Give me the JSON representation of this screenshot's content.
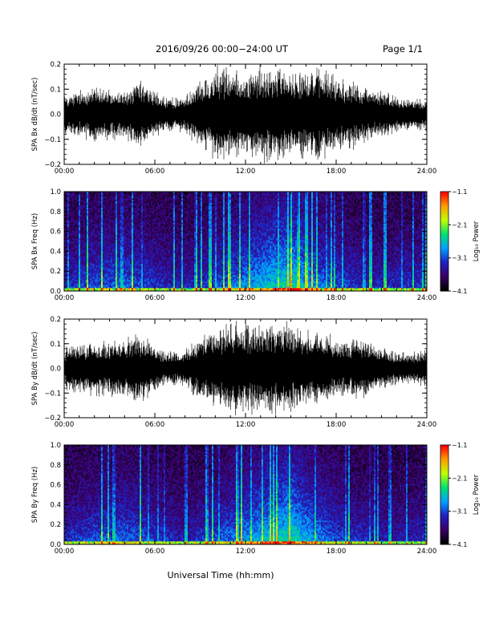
{
  "header": {
    "title": "2016/09/26  00:00−24:00 UT",
    "page": "Page 1/1"
  },
  "xlabel": "Universal Time (hh:mm)",
  "x_ticks": [
    "00:00",
    "06:00",
    "12:00",
    "18:00",
    "24:00"
  ],
  "colors": {
    "waveform": "#000000",
    "colorscale": [
      "#000000",
      "#3a0066",
      "#2020c0",
      "#00a0ff",
      "#00e070",
      "#c0ff00",
      "#ffa000",
      "#ff0000"
    ]
  },
  "chart_data": [
    {
      "type": "line",
      "panel": "bx-waveform",
      "ylabel": "SPA Bx dB/dt (nT/sec)",
      "xlim": [
        0,
        24
      ],
      "ylim": [
        -0.2,
        0.2
      ],
      "y_ticks": [
        "−0.2",
        "−0.1",
        "0.0",
        "0.1",
        "0.2"
      ],
      "x_hours": [
        0,
        1,
        2,
        3,
        4,
        5,
        6,
        7,
        8,
        9,
        10,
        11,
        12,
        13,
        14,
        15,
        16,
        17,
        18,
        19,
        20,
        21,
        22,
        23,
        24
      ],
      "envelope_amplitude": [
        0.09,
        0.1,
        0.13,
        0.11,
        0.1,
        0.14,
        0.1,
        0.07,
        0.08,
        0.16,
        0.2,
        0.2,
        0.18,
        0.2,
        0.2,
        0.2,
        0.2,
        0.2,
        0.16,
        0.15,
        0.12,
        0.1,
        0.08,
        0.07,
        0.08
      ]
    },
    {
      "type": "heatmap",
      "panel": "bx-spectrogram",
      "ylabel": "SPA Bx Freq (Hz)",
      "xlim": [
        0,
        24
      ],
      "ylim": [
        0.0,
        1.0
      ],
      "y_ticks": [
        "0.0",
        "0.2",
        "0.4",
        "0.6",
        "0.8",
        "1.0"
      ],
      "colorbar_label": "Log₁₀ Power",
      "colorbar_ticks": [
        "−1.1",
        "−2.1",
        "−3.1",
        "−4.1"
      ],
      "clim": [
        -4.1,
        -1.1
      ],
      "x_hours": [
        0,
        2,
        4,
        6,
        8,
        10,
        12,
        14,
        15,
        16,
        18,
        20,
        22,
        24
      ],
      "activity": [
        0.35,
        0.45,
        0.5,
        0.4,
        0.3,
        0.45,
        0.6,
        0.75,
        0.8,
        0.65,
        0.45,
        0.35,
        0.35,
        0.4
      ]
    },
    {
      "type": "line",
      "panel": "by-waveform",
      "ylabel": "SPA By dB/dt (nT/sec)",
      "xlim": [
        0,
        24
      ],
      "ylim": [
        -0.2,
        0.2
      ],
      "y_ticks": [
        "−0.2",
        "−0.1",
        "0.0",
        "0.1",
        "0.2"
      ],
      "x_hours": [
        0,
        1,
        2,
        3,
        4,
        5,
        6,
        7,
        8,
        9,
        10,
        11,
        12,
        13,
        14,
        15,
        16,
        17,
        18,
        19,
        20,
        21,
        22,
        23,
        24
      ],
      "envelope_amplitude": [
        0.09,
        0.11,
        0.13,
        0.12,
        0.14,
        0.16,
        0.1,
        0.07,
        0.08,
        0.14,
        0.18,
        0.2,
        0.2,
        0.2,
        0.2,
        0.2,
        0.18,
        0.16,
        0.14,
        0.13,
        0.12,
        0.09,
        0.07,
        0.07,
        0.09
      ]
    },
    {
      "type": "heatmap",
      "panel": "by-spectrogram",
      "ylabel": "SPA By Freq (Hz)",
      "xlim": [
        0,
        24
      ],
      "ylim": [
        0.0,
        1.0
      ],
      "y_ticks": [
        "0.0",
        "0.2",
        "0.4",
        "0.6",
        "0.8",
        "1.0"
      ],
      "colorbar_label": "Log₁₀ Power",
      "colorbar_ticks": [
        "−1.1",
        "−2.1",
        "−3.1",
        "−4.1"
      ],
      "clim": [
        -4.1,
        -1.1
      ],
      "x_hours": [
        0,
        2,
        4,
        6,
        8,
        10,
        12,
        14,
        15,
        16,
        18,
        20,
        22,
        24
      ],
      "activity": [
        0.35,
        0.45,
        0.5,
        0.4,
        0.3,
        0.45,
        0.6,
        0.75,
        0.8,
        0.65,
        0.45,
        0.35,
        0.3,
        0.35
      ]
    }
  ]
}
